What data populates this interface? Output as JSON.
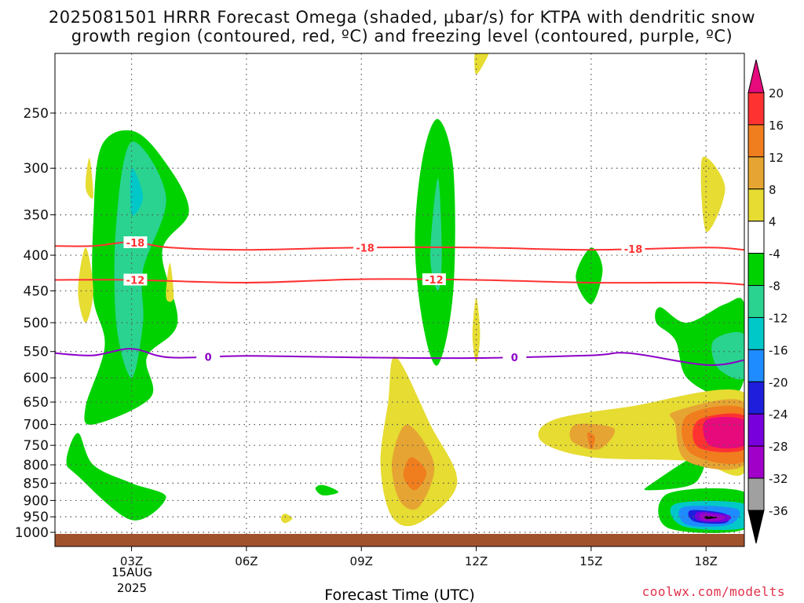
{
  "title": {
    "line1": "2025081501 HRRR Forecast Omega (shaded, μbar/s) for KTPA with dendritic snow",
    "line2": "growth region (contoured, red, ºC) and freezing level (contoured, purple, ºC)"
  },
  "watermark": "coolwx.com/modelts",
  "chart_data": {
    "type": "contour",
    "xlabel": "Forecast Time (UTC)",
    "x_ticks": [
      {
        "label": "03Z",
        "hour": 3
      },
      {
        "label": "06Z",
        "hour": 6
      },
      {
        "label": "09Z",
        "hour": 9
      },
      {
        "label": "12Z",
        "hour": 12
      },
      {
        "label": "15Z",
        "hour": 15
      },
      {
        "label": "18Z",
        "hour": 18
      }
    ],
    "date_label": [
      "15AUG",
      "2025"
    ],
    "xlim": [
      1,
      19
    ],
    "ylabel": "",
    "y_ticks": [
      250,
      300,
      350,
      400,
      450,
      500,
      550,
      600,
      650,
      700,
      750,
      800,
      850,
      900,
      950,
      1000
    ],
    "ylim": [
      1000,
      200
    ],
    "y_scale": "log-pressure",
    "grid": "dotted",
    "colorbar": {
      "labels": [
        "20",
        "16",
        "12",
        "8",
        "4",
        "-4",
        "-8",
        "-12",
        "-16",
        "-20",
        "-24",
        "-28",
        "-32",
        "-36"
      ],
      "colors": [
        "#e60a7d",
        "#ff3232",
        "#f07d1e",
        "#e6a532",
        "#e6dc32",
        "#ffffff",
        "#00d200",
        "#2ad38f",
        "#00c8c8",
        "#1e8cff",
        "#1e1edc",
        "#7800dc",
        "#a000c8",
        "#a0a0a0",
        "#000000"
      ]
    },
    "contours": [
      {
        "name": "-18",
        "color": "#ff3232",
        "points": [
          [
            1.0,
            388
          ],
          [
            2.0,
            388
          ],
          [
            3.0,
            383
          ],
          [
            4.0,
            390
          ],
          [
            6.0,
            393
          ],
          [
            9.0,
            390
          ],
          [
            12.0,
            390
          ],
          [
            15.0,
            393
          ],
          [
            18.0,
            390
          ],
          [
            19.0,
            393
          ]
        ],
        "labels": [
          {
            "text": "-18",
            "hour": 3.1
          },
          {
            "text": "-18",
            "hour": 9.1
          },
          {
            "text": "-18",
            "hour": 16.1
          }
        ]
      },
      {
        "name": "-12",
        "color": "#ff3232",
        "points": [
          [
            1.0,
            434
          ],
          [
            3.0,
            434
          ],
          [
            6.0,
            438
          ],
          [
            9.0,
            433
          ],
          [
            12.0,
            434
          ],
          [
            15.0,
            438
          ],
          [
            18.0,
            438
          ],
          [
            19.0,
            441
          ]
        ],
        "labels": [
          {
            "text": "-12",
            "hour": 3.1
          },
          {
            "text": "-12",
            "hour": 10.9
          }
        ]
      },
      {
        "name": "0",
        "color": "#8c00c8",
        "points": [
          [
            1.0,
            553
          ],
          [
            2.0,
            557
          ],
          [
            3.0,
            545
          ],
          [
            4.0,
            561
          ],
          [
            6.0,
            558
          ],
          [
            9.0,
            561
          ],
          [
            12.0,
            562
          ],
          [
            15.0,
            557
          ],
          [
            16.0,
            553
          ],
          [
            18.0,
            575
          ],
          [
            19.0,
            566
          ]
        ],
        "labels": [
          {
            "text": "0",
            "hour": 5.0
          },
          {
            "text": "0",
            "hour": 13.0
          }
        ]
      }
    ],
    "shaded_regions": [
      {
        "level": "-8",
        "points": [
          [
            3.0,
            265
          ],
          [
            3.8,
            290
          ],
          [
            4.5,
            345
          ],
          [
            3.8,
            395
          ],
          [
            4.2,
            500
          ],
          [
            3.4,
            560
          ],
          [
            3.5,
            640
          ],
          [
            2.0,
            700
          ],
          [
            1.8,
            660
          ],
          [
            2.3,
            540
          ],
          [
            2.0,
            460
          ],
          [
            2.0,
            360
          ],
          [
            2.2,
            280
          ]
        ]
      },
      {
        "level": "-8",
        "points": [
          [
            1.6,
            720
          ],
          [
            2.0,
            800
          ],
          [
            3.0,
            850
          ],
          [
            3.9,
            890
          ],
          [
            3.0,
            960
          ],
          [
            1.6,
            830
          ],
          [
            1.3,
            790
          ]
        ]
      },
      {
        "level": "-8",
        "points": [
          [
            11.0,
            255
          ],
          [
            11.4,
            300
          ],
          [
            11.4,
            450
          ],
          [
            11.0,
            575
          ],
          [
            10.6,
            500
          ],
          [
            10.4,
            380
          ],
          [
            10.6,
            290
          ]
        ]
      },
      {
        "level": "-8",
        "points": [
          [
            15.0,
            390
          ],
          [
            15.3,
            420
          ],
          [
            15.0,
            470
          ],
          [
            14.6,
            430
          ]
        ]
      },
      {
        "level": "-8",
        "points": [
          [
            16.8,
            475
          ],
          [
            17.5,
            500
          ],
          [
            18.5,
            470
          ],
          [
            19.0,
            470
          ],
          [
            19.0,
            600
          ],
          [
            18.5,
            640
          ],
          [
            17.5,
            600
          ],
          [
            17.2,
            530
          ],
          [
            16.7,
            500
          ]
        ]
      },
      {
        "level": "-8",
        "points": [
          [
            17.9,
            770
          ],
          [
            17.7,
            850
          ],
          [
            16.5,
            870
          ],
          [
            16.6,
            850
          ]
        ]
      },
      {
        "level": "-8",
        "points": [
          [
            8.0,
            855
          ],
          [
            8.4,
            875
          ],
          [
            8.0,
            885
          ],
          [
            7.8,
            865
          ]
        ]
      },
      {
        "level": "-8",
        "points": [
          [
            17.0,
            880
          ],
          [
            19.0,
            875
          ],
          [
            19.0,
            990
          ],
          [
            17.0,
            985
          ]
        ]
      },
      {
        "level": "-12",
        "points": [
          [
            3.0,
            275
          ],
          [
            3.9,
            330
          ],
          [
            3.3,
            420
          ],
          [
            3.3,
            500
          ],
          [
            3.0,
            600
          ],
          [
            2.6,
            500
          ],
          [
            2.6,
            360
          ]
        ]
      },
      {
        "level": "-12",
        "points": [
          [
            11.0,
            310
          ],
          [
            11.1,
            400
          ],
          [
            11.0,
            450
          ],
          [
            10.8,
            400
          ]
        ]
      },
      {
        "level": "-12",
        "points": [
          [
            18.2,
            530
          ],
          [
            19.0,
            520
          ],
          [
            19.0,
            600
          ],
          [
            18.3,
            580
          ]
        ]
      },
      {
        "level": "-16",
        "points": [
          [
            3.0,
            300
          ],
          [
            3.3,
            330
          ],
          [
            3.0,
            350
          ]
        ]
      },
      {
        "level": "-16",
        "points": [
          [
            17.2,
            910
          ],
          [
            19.0,
            910
          ],
          [
            19.0,
            985
          ],
          [
            17.4,
            980
          ]
        ]
      },
      {
        "level": "-20",
        "points": [
          [
            17.4,
            920
          ],
          [
            18.8,
            925
          ],
          [
            18.6,
            975
          ],
          [
            17.5,
            975
          ]
        ]
      },
      {
        "level": "-24",
        "points": [
          [
            17.6,
            930
          ],
          [
            18.5,
            940
          ],
          [
            18.5,
            970
          ],
          [
            17.7,
            965
          ]
        ]
      },
      {
        "level": "-28",
        "points": [
          [
            17.8,
            935
          ],
          [
            18.6,
            945
          ],
          [
            18.5,
            965
          ],
          [
            17.8,
            962
          ]
        ]
      },
      {
        "level": "-32",
        "points": [
          [
            17.9,
            940
          ],
          [
            18.5,
            950
          ],
          [
            18.3,
            962
          ],
          [
            17.9,
            960
          ]
        ]
      },
      {
        "level": "-36",
        "points": [
          [
            18.0,
            948
          ],
          [
            18.3,
            952
          ],
          [
            18.0,
            957
          ]
        ]
      },
      {
        "level": "4",
        "points": [
          [
            1.9,
            290
          ],
          [
            2.0,
            330
          ],
          [
            1.8,
            320
          ]
        ]
      },
      {
        "level": "4",
        "points": [
          [
            1.8,
            390
          ],
          [
            2.0,
            450
          ],
          [
            1.8,
            500
          ],
          [
            1.6,
            450
          ]
        ]
      },
      {
        "level": "4",
        "points": [
          [
            4.0,
            410
          ],
          [
            4.1,
            460
          ],
          [
            3.9,
            460
          ]
        ]
      },
      {
        "level": "4",
        "points": [
          [
            12.0,
            200
          ],
          [
            12.4,
            200
          ],
          [
            12.0,
            220
          ]
        ]
      },
      {
        "level": "4",
        "points": [
          [
            12.0,
            460
          ],
          [
            12.1,
            520
          ],
          [
            12.0,
            570
          ],
          [
            11.9,
            520
          ]
        ]
      },
      {
        "level": "4",
        "points": [
          [
            17.9,
            290
          ],
          [
            18.5,
            320
          ],
          [
            18.0,
            370
          ]
        ]
      },
      {
        "level": "4",
        "points": [
          [
            9.9,
            560
          ],
          [
            10.8,
            700
          ],
          [
            11.5,
            850
          ],
          [
            10.5,
            970
          ],
          [
            9.8,
            950
          ],
          [
            9.5,
            800
          ],
          [
            9.7,
            650
          ]
        ]
      },
      {
        "level": "4",
        "points": [
          [
            14.0,
            690
          ],
          [
            16.0,
            660
          ],
          [
            19.0,
            630
          ],
          [
            19.0,
            820
          ],
          [
            17.6,
            790
          ],
          [
            15.0,
            780
          ],
          [
            13.7,
            740
          ]
        ]
      },
      {
        "level": "4",
        "points": [
          [
            7.0,
            940
          ],
          [
            7.2,
            955
          ],
          [
            7.0,
            970
          ],
          [
            6.9,
            955
          ]
        ]
      },
      {
        "level": "8",
        "points": [
          [
            10.2,
            700
          ],
          [
            10.9,
            800
          ],
          [
            10.5,
            920
          ],
          [
            10.0,
            900
          ],
          [
            9.8,
            790
          ]
        ]
      },
      {
        "level": "8",
        "points": [
          [
            14.6,
            700
          ],
          [
            15.6,
            710
          ],
          [
            15.2,
            760
          ],
          [
            14.5,
            740
          ]
        ]
      },
      {
        "level": "8",
        "points": [
          [
            17.2,
            670
          ],
          [
            19.0,
            650
          ],
          [
            19.0,
            800
          ],
          [
            17.5,
            790
          ],
          [
            17.2,
            700
          ]
        ]
      },
      {
        "level": "12",
        "points": [
          [
            10.3,
            780
          ],
          [
            10.7,
            820
          ],
          [
            10.4,
            870
          ],
          [
            10.1,
            830
          ]
        ]
      },
      {
        "level": "12",
        "points": [
          [
            14.9,
            720
          ],
          [
            15.1,
            730
          ],
          [
            15.0,
            760
          ]
        ]
      },
      {
        "level": "12",
        "points": [
          [
            17.5,
            680
          ],
          [
            19.0,
            665
          ],
          [
            19.0,
            790
          ],
          [
            17.6,
            770
          ]
        ]
      },
      {
        "level": "16",
        "points": [
          [
            17.8,
            690
          ],
          [
            19.0,
            680
          ],
          [
            19.0,
            760
          ],
          [
            17.8,
            755
          ]
        ]
      },
      {
        "level": "20",
        "points": [
          [
            18.0,
            690
          ],
          [
            19.0,
            690
          ],
          [
            19.0,
            750
          ],
          [
            18.1,
            750
          ]
        ]
      }
    ]
  }
}
